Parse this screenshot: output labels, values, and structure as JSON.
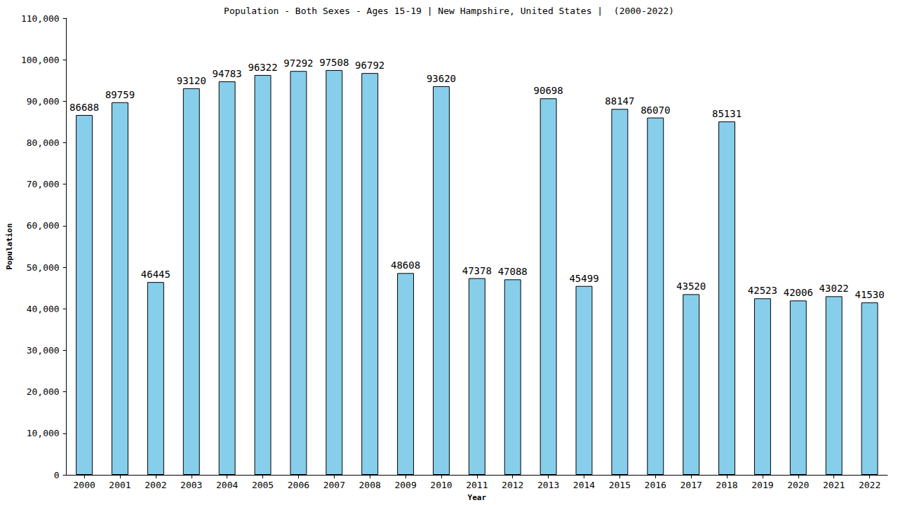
{
  "chart_data": {
    "type": "bar",
    "title": "Population - Both Sexes - Ages 15-19 | New Hampshire, United States |  (2000-2022)",
    "x_label": "Year",
    "y_label": "Population",
    "categories": [
      "2000",
      "2001",
      "2002",
      "2003",
      "2004",
      "2005",
      "2006",
      "2007",
      "2008",
      "2009",
      "2010",
      "2011",
      "2012",
      "2013",
      "2014",
      "2015",
      "2016",
      "2017",
      "2018",
      "2019",
      "2020",
      "2021",
      "2022"
    ],
    "values": [
      86688,
      89759,
      46445,
      93120,
      94783,
      96322,
      97292,
      97508,
      96792,
      48608,
      93620,
      47378,
      47088,
      90698,
      45499,
      88147,
      86070,
      43520,
      85131,
      42523,
      42006,
      43022,
      41530
    ],
    "color": "#87ceeb",
    "ylim": [
      0,
      110000
    ],
    "yticks": [
      0,
      10000,
      20000,
      30000,
      40000,
      50000,
      60000,
      70000,
      80000,
      90000,
      100000,
      110000
    ],
    "grid": false,
    "data_labels": true
  }
}
